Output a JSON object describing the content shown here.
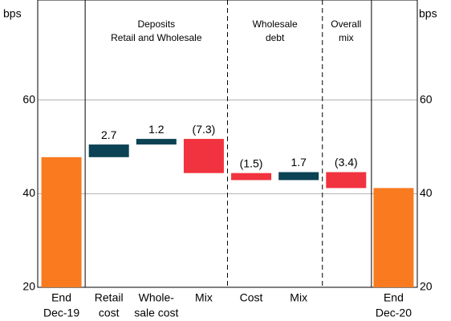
{
  "chart_data": {
    "type": "waterfall",
    "y_label": "bps",
    "y2_label": "bps",
    "categories": [
      [
        "End",
        "Dec-19"
      ],
      [
        "Retail",
        "cost"
      ],
      [
        "Whole-",
        "sale cost"
      ],
      [
        "Mix"
      ],
      [
        "Cost"
      ],
      [
        "Mix"
      ],
      [],
      [
        "End",
        "Dec-20"
      ]
    ],
    "measure": [
      "absolute",
      "relative",
      "relative",
      "relative",
      "relative",
      "relative",
      "relative",
      "absolute"
    ],
    "values": [
      47.8,
      2.7,
      1.2,
      -7.3,
      -1.5,
      1.7,
      -3.4,
      41.2
    ],
    "value_labels": [
      null,
      "2.7",
      "1.2",
      "(7.3)",
      "(1.5)",
      "1.7",
      "(3.4)",
      null
    ],
    "groups": [
      [
        "Deposits",
        "Retail and Wholesale"
      ],
      [
        "Wholesale",
        "debt"
      ],
      [
        "Overall",
        "mix"
      ]
    ],
    "colors": {
      "absolute": "#f97a1f",
      "increase": "#0b4254",
      "decrease": "#f1333f"
    },
    "ylim": [
      20,
      80
    ],
    "yticks": [
      20,
      40,
      60
    ],
    "grid": true
  }
}
